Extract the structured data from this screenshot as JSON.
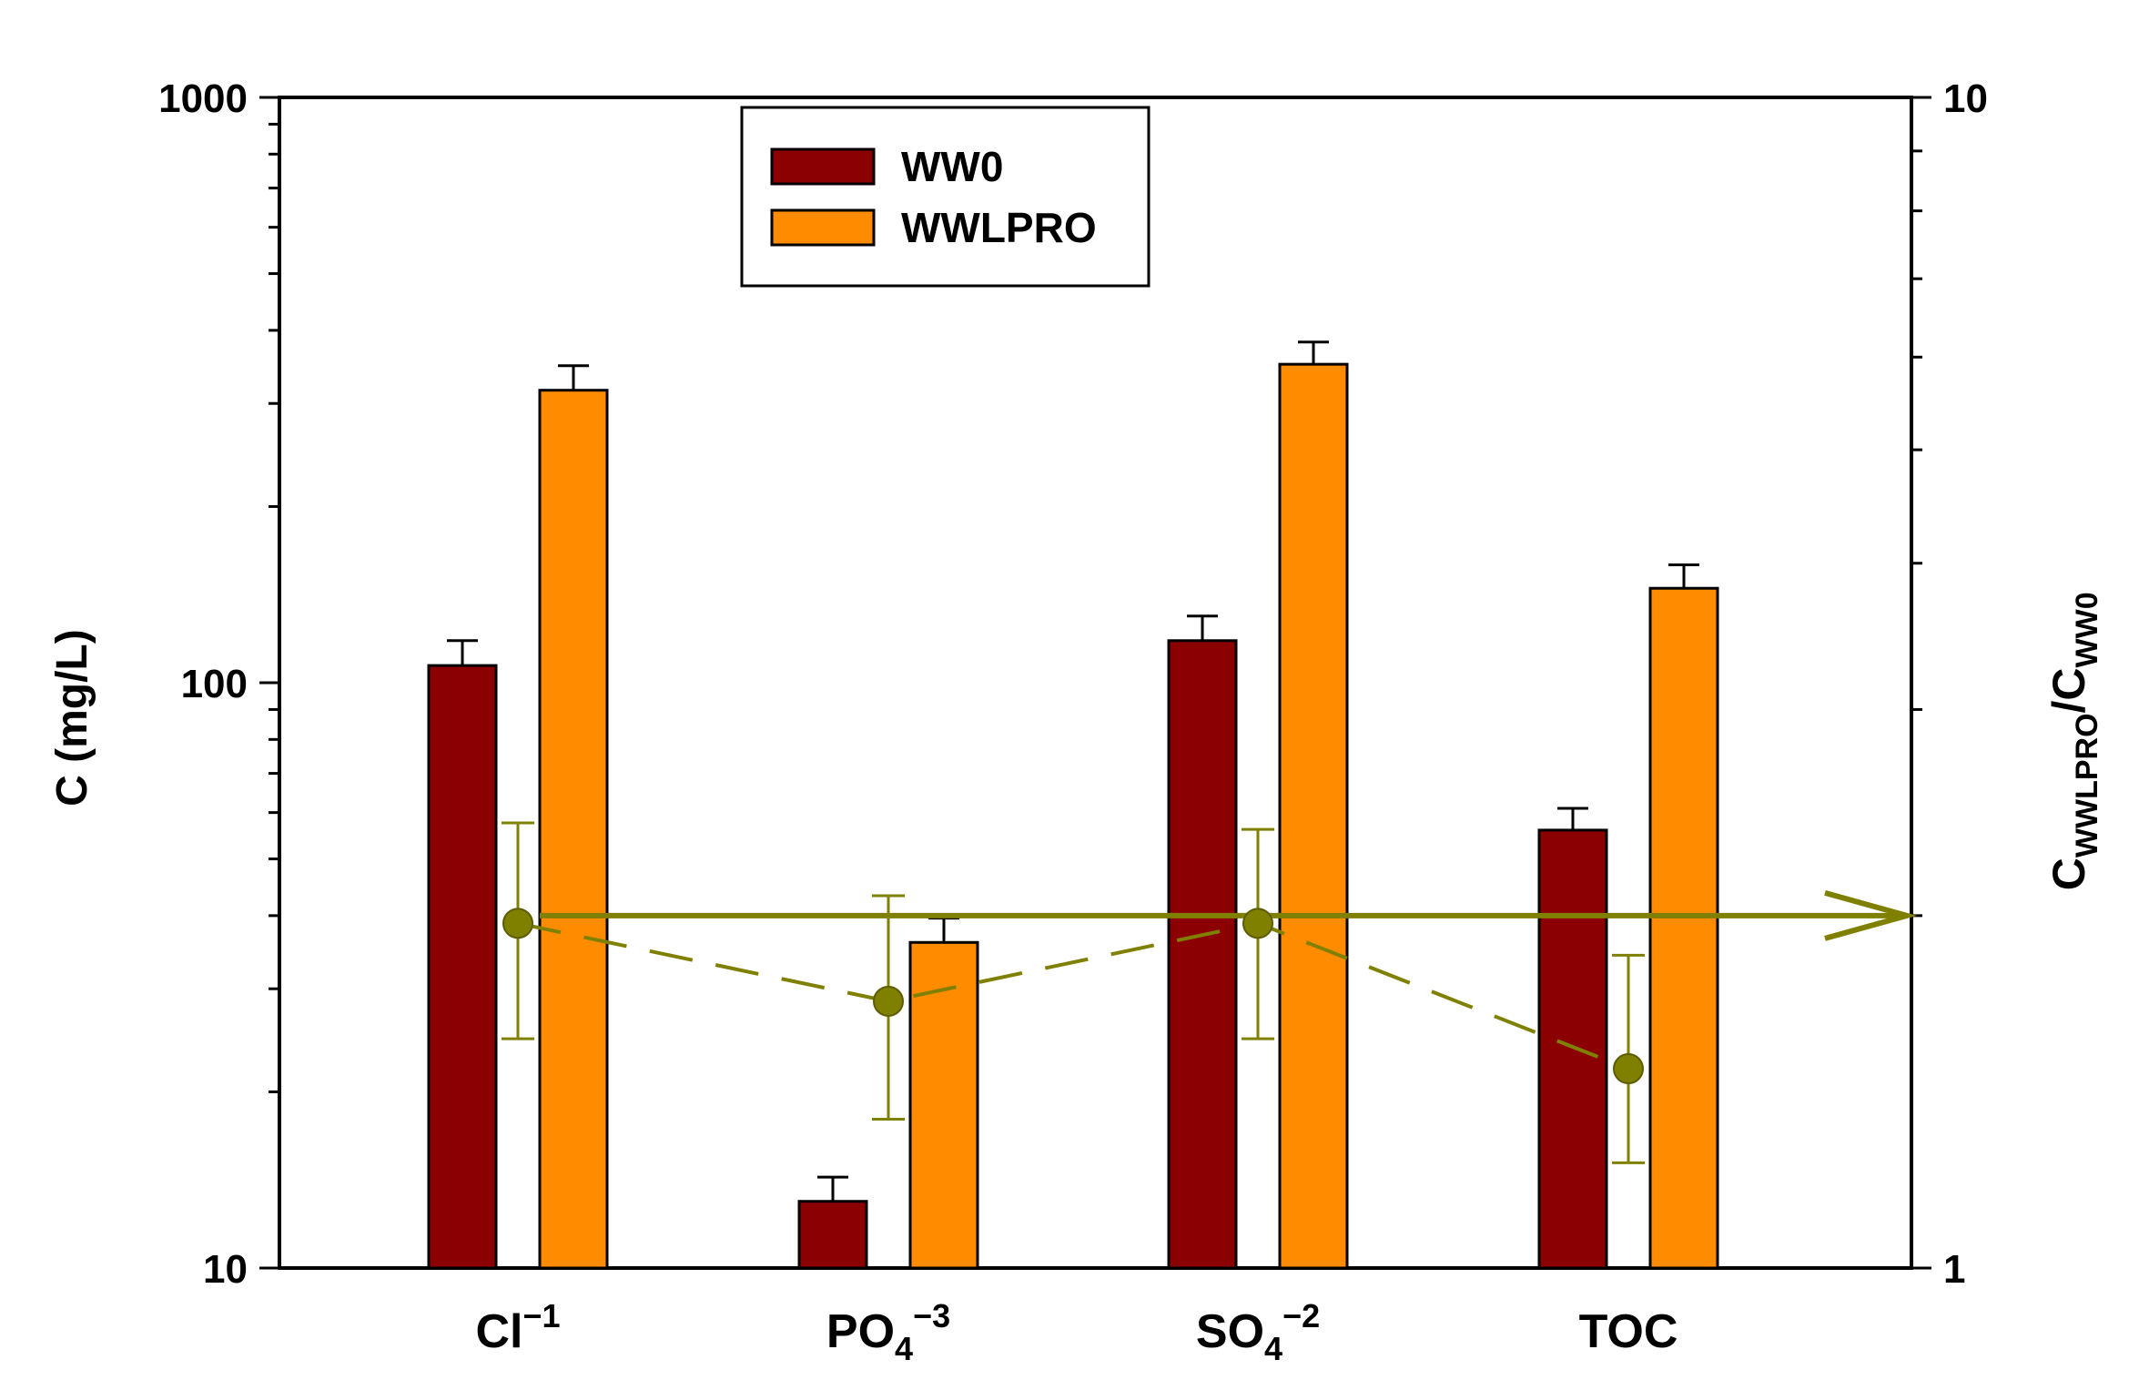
{
  "chart_data": {
    "type": "bar",
    "categories": [
      "Cl",
      "PO4",
      "SO4",
      "TOC"
    ],
    "category_labels": [
      {
        "base": "Cl",
        "sub": "",
        "sup": "−1"
      },
      {
        "base": "PO",
        "sub": "4",
        "sup": "−3"
      },
      {
        "base": "SO",
        "sub": "4",
        "sup": "−2"
      },
      {
        "base": "TOC",
        "sub": "",
        "sup": ""
      }
    ],
    "series": [
      {
        "name": "WW0",
        "color": "#8b0000",
        "values": [
          107,
          13,
          118,
          56
        ],
        "errors": [
          11,
          1.3,
          12,
          5
        ]
      },
      {
        "name": "WWLPRO",
        "color": "#ff8c00",
        "values": [
          316,
          36,
          350,
          145
        ],
        "errors": [
          32,
          3.6,
          32,
          14
        ]
      }
    ],
    "ratio_series": {
      "name": "CWWLPRO/CWW0",
      "color": "#808000",
      "values": [
        1.97,
        1.69,
        1.97,
        1.48
      ],
      "err_upper": [
        0.43,
        0.39,
        0.4,
        0.37
      ],
      "err_lower": [
        0.4,
        0.35,
        0.4,
        0.25
      ],
      "reference_line": 2.0
    },
    "y_left": {
      "label": "C (mg/L)",
      "scale": "log",
      "ylim": [
        10,
        1000
      ],
      "tick_labels": [
        "10",
        "100",
        "1000"
      ]
    },
    "y_right": {
      "label_base": "C",
      "label_sub1": "WWLPRO",
      "label_sep": "/C",
      "label_sub2": "WW0",
      "scale": "log",
      "ylim": [
        1,
        10
      ],
      "tick_labels": [
        "1",
        "10"
      ]
    },
    "legend": {
      "position": "top-center",
      "entries": [
        "WW0",
        "WWLPRO"
      ]
    },
    "title": "",
    "xlabel": ""
  }
}
